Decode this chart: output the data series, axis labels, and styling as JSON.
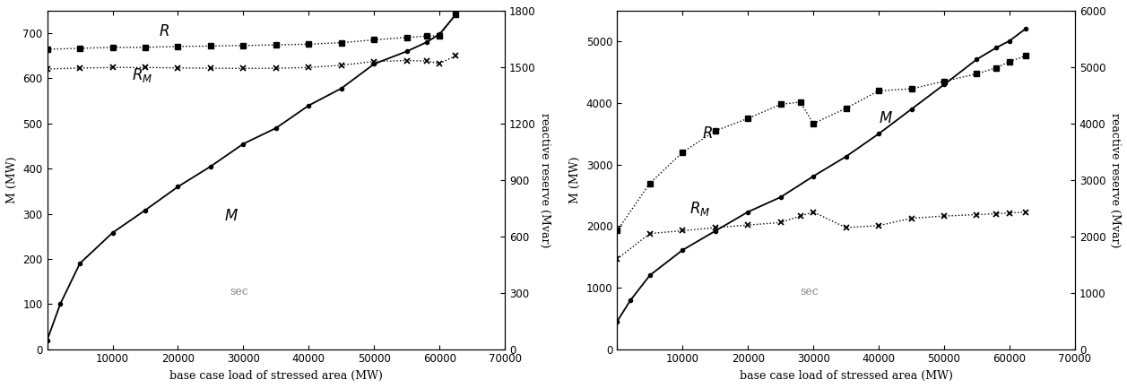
{
  "left": {
    "xlabel": "base case load of stressed area (MW)",
    "ylabel_left": "M (MW)",
    "ylabel_right": "reactive reserve (Mvar)",
    "annotation": "sec",
    "xlim": [
      0,
      70000
    ],
    "ylim_left": [
      0,
      750
    ],
    "ylim_right": [
      0,
      1800
    ],
    "xticks": [
      0,
      10000,
      20000,
      30000,
      40000,
      50000,
      60000,
      70000
    ],
    "yticks_left": [
      0,
      100,
      200,
      300,
      400,
      500,
      600,
      700
    ],
    "yticks_right": [
      0,
      300,
      600,
      900,
      1200,
      1500,
      1800
    ],
    "M_x": [
      0,
      2000,
      5000,
      10000,
      15000,
      20000,
      25000,
      30000,
      35000,
      40000,
      45000,
      50000,
      55000,
      58000,
      60000,
      62500
    ],
    "M_y": [
      20,
      100,
      190,
      258,
      308,
      360,
      405,
      455,
      490,
      540,
      578,
      632,
      660,
      680,
      698,
      742
    ],
    "R_x": [
      0,
      5000,
      10000,
      15000,
      20000,
      25000,
      30000,
      35000,
      40000,
      45000,
      50000,
      55000,
      58000,
      60000,
      62500
    ],
    "R_y": [
      1595,
      1600,
      1605,
      1605,
      1610,
      1612,
      1615,
      1618,
      1622,
      1630,
      1645,
      1658,
      1665,
      1668,
      1780
    ],
    "RM_x": [
      0,
      5000,
      10000,
      15000,
      20000,
      25000,
      30000,
      35000,
      40000,
      45000,
      50000,
      55000,
      58000,
      60000,
      62500
    ],
    "RM_y": [
      1490,
      1495,
      1498,
      1498,
      1496,
      1494,
      1493,
      1494,
      1498,
      1510,
      1530,
      1535,
      1532,
      1520,
      1560
    ],
    "R_label": [
      17000,
      1690
    ],
    "RM_label": [
      13000,
      1455
    ],
    "M_label": [
      27000,
      295
    ]
  },
  "right": {
    "xlabel": "base case load of stressed area (MW)",
    "ylabel_left": "M (MW)",
    "ylabel_right": "reactive reserve (Mvar)",
    "annotation": "sec",
    "xlim": [
      0,
      70000
    ],
    "ylim_left": [
      0,
      5500
    ],
    "ylim_right": [
      0,
      6000
    ],
    "xticks": [
      0,
      10000,
      20000,
      30000,
      40000,
      50000,
      60000,
      70000
    ],
    "yticks_left": [
      0,
      1000,
      2000,
      3000,
      4000,
      5000
    ],
    "yticks_right": [
      0,
      1000,
      2000,
      3000,
      4000,
      5000,
      6000
    ],
    "M_x": [
      0,
      2000,
      5000,
      10000,
      15000,
      20000,
      25000,
      30000,
      35000,
      40000,
      45000,
      50000,
      55000,
      58000,
      60000,
      62500
    ],
    "M_y": [
      450,
      790,
      1200,
      1610,
      1920,
      2230,
      2470,
      2810,
      3130,
      3500,
      3900,
      4300,
      4710,
      4900,
      5010,
      5210
    ],
    "R_x": [
      0,
      5000,
      10000,
      15000,
      20000,
      25000,
      28000,
      30000,
      35000,
      40000,
      45000,
      50000,
      55000,
      58000,
      60000,
      62500
    ],
    "R_y": [
      2100,
      2940,
      3490,
      3870,
      4090,
      4340,
      4380,
      4000,
      4270,
      4580,
      4615,
      4750,
      4880,
      4990,
      5100,
      5200
    ],
    "RM_x": [
      0,
      5000,
      10000,
      15000,
      20000,
      25000,
      28000,
      30000,
      35000,
      40000,
      45000,
      50000,
      55000,
      58000,
      60000,
      62500
    ],
    "RM_y": [
      1600,
      2050,
      2100,
      2155,
      2200,
      2245,
      2360,
      2430,
      2155,
      2190,
      2320,
      2360,
      2385,
      2400,
      2415,
      2430
    ],
    "R_label": [
      13000,
      3820
    ],
    "RM_label": [
      11000,
      2490
    ],
    "M_label": [
      40000,
      3750
    ]
  }
}
